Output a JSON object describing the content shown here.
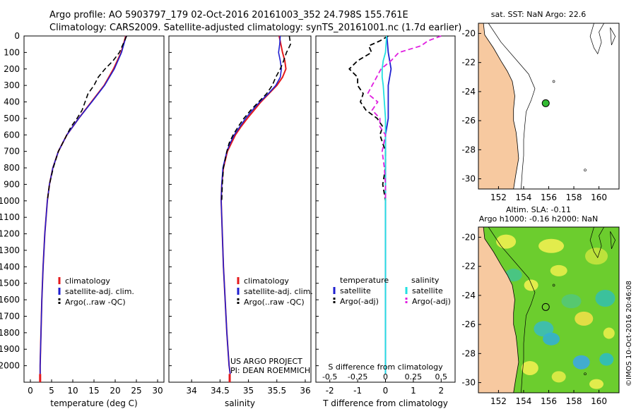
{
  "header": {
    "line1": "Argo profile: AO 5903797_179 02-Oct-2016 20161003_352 24.798S 155.761E",
    "line2": "Climatology: CARS2009. Satellite-adjusted climatology: synTS_20161001.nc (1.7d earlier)"
  },
  "colors": {
    "climatology": "#e41a1c",
    "satellite": "#1f1fd0",
    "argo": "#000000",
    "sat_salinity": "#22e0e0",
    "argo_salinity": "#e020e0",
    "land": "#f7c9a0",
    "marker": "#33bb33"
  },
  "chart_data": [
    {
      "type": "line",
      "name": "temperature",
      "xlabel": "temperature (deg C)",
      "ylabel": "",
      "xlim": [
        -1.5,
        31.5
      ],
      "ylim": [
        2100,
        0
      ],
      "xticks": [
        0,
        5,
        10,
        15,
        20,
        25,
        30
      ],
      "yticks": [
        0,
        100,
        200,
        300,
        400,
        500,
        600,
        700,
        800,
        900,
        1000,
        1100,
        1200,
        1300,
        1400,
        1500,
        1600,
        1700,
        1800,
        1900,
        2000
      ],
      "legend": [
        "climatology",
        "satellite-adj. clim.",
        "Argo(..raw -QC)"
      ],
      "series": [
        {
          "name": "climatology",
          "depth": [
            0,
            100,
            200,
            300,
            400,
            500,
            600,
            700,
            800,
            900,
            1000,
            1200,
            1400,
            1600,
            1800,
            2000,
            2050
          ],
          "values": [
            22.5,
            21.4,
            19.6,
            17.4,
            14.4,
            11.4,
            8.6,
            6.6,
            5.3,
            4.5,
            4.0,
            3.4,
            3.0,
            2.7,
            2.5,
            2.3,
            2.3
          ]
        },
        {
          "name": "satellite",
          "depth": [
            0,
            100,
            200,
            300,
            400,
            500,
            600,
            700,
            800,
            900,
            1000,
            1200,
            1400,
            1600,
            1800,
            2000,
            2050
          ],
          "values": [
            22.6,
            21.5,
            19.8,
            17.5,
            14.5,
            11.4,
            8.6,
            6.6,
            5.3,
            4.5,
            4.0,
            3.4,
            3.0,
            2.7,
            2.5,
            2.3,
            2.3
          ]
        },
        {
          "name": "argo",
          "depth": [
            0,
            100,
            150,
            200,
            250,
            300,
            350,
            400,
            450,
            500,
            550,
            600,
            700,
            800,
            900,
            1000
          ],
          "values": [
            22.7,
            21.0,
            19.5,
            17.6,
            16.0,
            15.0,
            13.6,
            12.9,
            12.2,
            11.0,
            9.6,
            8.6,
            6.6,
            5.4,
            4.5,
            4.0
          ]
        }
      ]
    },
    {
      "type": "line",
      "name": "salinity",
      "xlabel": "salinity",
      "xlim": [
        33.6,
        36.1
      ],
      "ylim": [
        2100,
        0
      ],
      "xticks": [
        34,
        34.5,
        35,
        35.5,
        36
      ],
      "legend": [
        "climatology",
        "satellite-adj. clim.",
        "Argo(..raw -QC)"
      ],
      "series": [
        {
          "name": "climatology",
          "depth": [
            0,
            50,
            100,
            150,
            200,
            250,
            300,
            350,
            400,
            450,
            500,
            550,
            600,
            650,
            700,
            800,
            900,
            1000,
            1200,
            1400,
            1600,
            1800,
            2000,
            2050
          ],
          "values": [
            35.54,
            35.57,
            35.6,
            35.64,
            35.66,
            35.6,
            35.5,
            35.36,
            35.22,
            35.1,
            34.98,
            34.87,
            34.77,
            34.7,
            34.63,
            34.56,
            34.53,
            34.52,
            34.54,
            34.56,
            34.59,
            34.62,
            34.66,
            34.68
          ]
        },
        {
          "name": "satellite",
          "depth": [
            0,
            50,
            100,
            150,
            200,
            250,
            300,
            350,
            400,
            450,
            500,
            550,
            600,
            650,
            700,
            800,
            900,
            1000,
            1200,
            1400,
            1600,
            1800,
            2000,
            2050
          ],
          "values": [
            35.56,
            35.55,
            35.53,
            35.56,
            35.58,
            35.56,
            35.48,
            35.35,
            35.2,
            35.07,
            34.95,
            34.85,
            34.75,
            34.68,
            34.62,
            34.55,
            34.53,
            34.52,
            34.54,
            34.56,
            34.59,
            34.62,
            34.66,
            34.68
          ]
        },
        {
          "name": "argo",
          "depth": [
            0,
            50,
            80,
            100,
            150,
            200,
            250,
            300,
            350,
            400,
            450,
            500,
            550,
            600,
            650,
            700,
            800,
            900,
            1000
          ],
          "values": [
            35.72,
            35.74,
            35.7,
            35.67,
            35.62,
            35.56,
            35.48,
            35.42,
            35.32,
            35.18,
            35.04,
            34.92,
            34.82,
            34.73,
            34.66,
            34.62,
            34.56,
            34.54,
            34.53
          ]
        }
      ]
    },
    {
      "type": "line",
      "name": "differences",
      "xlabel": "T difference from climatology",
      "xlabel_top": "S difference from climatology",
      "xlim": [
        -2.5,
        2.5
      ],
      "ylim": [
        2100,
        0
      ],
      "xticks": [
        -2,
        -1,
        0,
        1,
        2
      ],
      "xticks_s": [
        -0.5,
        -0.25,
        0,
        0.25,
        0.5
      ],
      "legend_title_t": "temperature",
      "legend_title_s": "salinity",
      "legend": [
        "satellite",
        "Argo(-adj)",
        "satellite",
        "Argo(-adj)"
      ],
      "series": [
        {
          "name": "T satellite",
          "depth": [
            0,
            100,
            200,
            300,
            400,
            500,
            600,
            700,
            800,
            1000,
            1500,
            2050
          ],
          "values": [
            0.05,
            0.1,
            0.2,
            0.1,
            0.1,
            0.1,
            0.0,
            0.0,
            0.0,
            0.0,
            0.0,
            0.0
          ]
        },
        {
          "name": "T argo",
          "depth": [
            0,
            30,
            60,
            100,
            150,
            200,
            250,
            300,
            350,
            400,
            450,
            500,
            550,
            600,
            650,
            700,
            800,
            900,
            1000
          ],
          "values": [
            0.1,
            -0.2,
            -0.6,
            -0.5,
            -1.0,
            -1.3,
            -1.0,
            -1.0,
            -0.8,
            -0.9,
            -0.7,
            -0.3,
            -0.1,
            -0.2,
            -0.1,
            0.0,
            0.0,
            -0.1,
            0.0
          ]
        },
        {
          "name": "S satellite",
          "depth": [
            0,
            100,
            150,
            200,
            250,
            300,
            400,
            500,
            600,
            700,
            800,
            1000,
            1500,
            2050
          ],
          "values": [
            0.01,
            0.0,
            -0.02,
            -0.03,
            -0.03,
            -0.02,
            -0.01,
            0.0,
            0.0,
            0.0,
            0.0,
            0.0,
            0.0,
            0.0
          ]
        },
        {
          "name": "S argo",
          "depth": [
            0,
            30,
            60,
            100,
            150,
            200,
            250,
            300,
            350,
            400,
            450,
            500,
            550,
            600,
            700,
            800,
            900,
            1000
          ],
          "values": [
            0.5,
            0.38,
            0.32,
            0.12,
            0.05,
            -0.04,
            -0.08,
            -0.12,
            -0.16,
            -0.07,
            -0.12,
            -0.05,
            -0.05,
            0.0,
            -0.03,
            -0.01,
            0.0,
            0.0
          ]
        }
      ]
    }
  ],
  "maps": {
    "sst_title": "sat. SST: NaN Argo: 22.6",
    "sla_title1": "Altim. SLA: -0.11",
    "sla_title2": "Argo h1000: -0.16 h2000: NaN",
    "xticks": [
      152,
      154,
      156,
      158,
      160
    ],
    "yticks": [
      -20,
      -22,
      -24,
      -26,
      -28,
      -30
    ],
    "profile_lon": 155.761,
    "profile_lat": -24.798
  },
  "annotations": {
    "project": "US ARGO PROJECT",
    "pi": "PI: DEAN ROEMMICH",
    "watermark": "©IMOS 10-Oct-2016 20:46:08"
  }
}
